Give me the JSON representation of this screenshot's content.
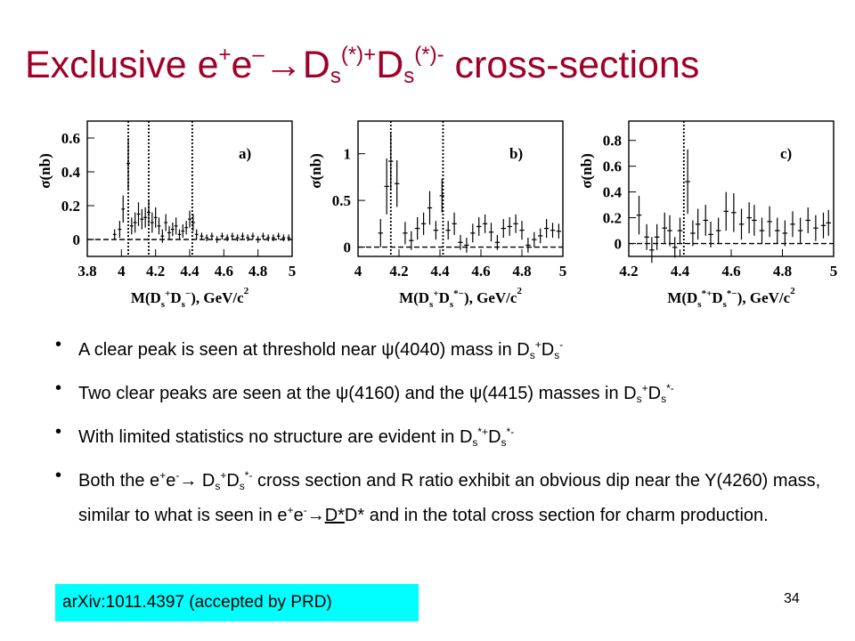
{
  "slide": {
    "title": {
      "t1": "Exclusive e",
      "t2": "+",
      "t3": "e",
      "t4": "–",
      "t5": "→D",
      "t6": "s",
      "t7": "(*)+",
      "t8": "D",
      "t9": "s",
      "t10": "(*)-",
      "t11": " cross-sections"
    },
    "bullets": [
      {
        "seg": [
          "A clear peak is seen at threshold near ψ(4040) mass in D",
          "s",
          "+",
          "D",
          "s",
          "-"
        ]
      },
      {
        "seg": [
          "Two clear peaks are seen at the ψ(4160) and the ψ(4415) masses in D",
          "s",
          "+",
          "D",
          "s",
          "*-"
        ]
      },
      {
        "seg": [
          "With limited statistics no structure are evident in  D",
          "s",
          "*+",
          "D",
          "s",
          "*-"
        ]
      },
      {
        "seg": [
          "Both the e",
          "+",
          "e",
          "-",
          "→ D",
          "s",
          "+",
          "D",
          "s",
          "*-",
          " cross section and R ratio exhibit an obvious dip near the Y(4260) mass, similar to what is seen in  e",
          "+",
          "e",
          "-",
          "→",
          "D*",
          "D* and in the total cross section for charm production."
        ]
      }
    ],
    "bullet_char": "•",
    "reference": "arXiv:1011.4397 (accepted by PRD)",
    "page_number": "34"
  },
  "chart_data": [
    {
      "type": "scatter",
      "panel_label": "a)",
      "ylabel": "σ(nb)",
      "xlabel": "M(Ds+Ds−), GeV/c²",
      "xlabel_parts": [
        "M(D",
        "s",
        "+",
        "D",
        "s",
        "−",
        "), GeV/c",
        "2"
      ],
      "xlim": [
        3.8,
        5.0
      ],
      "ylim": [
        -0.1,
        0.7
      ],
      "xticks": [
        "3.8",
        "4",
        "4.2",
        "4.4",
        "4.6",
        "4.8",
        "5"
      ],
      "yticks": [
        "0",
        "0.2",
        "0.4",
        "0.6"
      ],
      "vlines": [
        4.04,
        4.16,
        4.415
      ],
      "points": [
        [
          3.96,
          0.03
        ],
        [
          3.99,
          0.06
        ],
        [
          4.01,
          0.18
        ],
        [
          4.04,
          0.45
        ],
        [
          4.06,
          0.08
        ],
        [
          4.08,
          0.1
        ],
        [
          4.1,
          0.15
        ],
        [
          4.12,
          0.12
        ],
        [
          4.14,
          0.13
        ],
        [
          4.16,
          0.16
        ],
        [
          4.18,
          0.1
        ],
        [
          4.2,
          0.13
        ],
        [
          4.22,
          0.08
        ],
        [
          4.24,
          0.02
        ],
        [
          4.26,
          0.1
        ],
        [
          4.28,
          0.04
        ],
        [
          4.3,
          0.06
        ],
        [
          4.32,
          0.08
        ],
        [
          4.34,
          0.03
        ],
        [
          4.36,
          0.05
        ],
        [
          4.38,
          0.07
        ],
        [
          4.4,
          0.12
        ],
        [
          4.42,
          0.1
        ],
        [
          4.44,
          0.03
        ],
        [
          4.47,
          0.02
        ],
        [
          4.5,
          0.01
        ],
        [
          4.53,
          0.02
        ],
        [
          4.56,
          0.0
        ],
        [
          4.59,
          0.02
        ],
        [
          4.62,
          0.01
        ],
        [
          4.65,
          0.02
        ],
        [
          4.68,
          0.01
        ],
        [
          4.71,
          0.02
        ],
        [
          4.74,
          0.01
        ],
        [
          4.77,
          0.02
        ],
        [
          4.8,
          0.0
        ],
        [
          4.83,
          0.02
        ],
        [
          4.86,
          0.01
        ],
        [
          4.89,
          0.01
        ],
        [
          4.92,
          0.02
        ],
        [
          4.95,
          0.01
        ],
        [
          4.98,
          0.01
        ]
      ],
      "errors": [
        0.03,
        0.05,
        0.08,
        0.15,
        0.05,
        0.06,
        0.07,
        0.06,
        0.06,
        0.07,
        0.06,
        0.06,
        0.05,
        0.04,
        0.05,
        0.04,
        0.04,
        0.05,
        0.03,
        0.04,
        0.04,
        0.05,
        0.05,
        0.03,
        0.02,
        0.02,
        0.02,
        0.02,
        0.02,
        0.02,
        0.02,
        0.02,
        0.02,
        0.02,
        0.02,
        0.02,
        0.02,
        0.02,
        0.02,
        0.02,
        0.02,
        0.02
      ]
    },
    {
      "type": "scatter",
      "panel_label": "b)",
      "ylabel": "σ(nb)",
      "xlabel": "M(Ds+Ds*−), GeV/c²",
      "xlabel_parts": [
        "M(D",
        "s",
        "+",
        "D",
        "s",
        "*−",
        "), GeV/c",
        "2"
      ],
      "xlim": [
        4.0,
        5.0
      ],
      "ylim": [
        -0.1,
        1.35
      ],
      "xticks": [
        "4",
        "4.2",
        "4.4",
        "4.6",
        "4.8",
        "5"
      ],
      "yticks": [
        "0",
        "0.5",
        "1"
      ],
      "vlines": [
        4.16,
        4.415
      ],
      "points": [
        [
          4.11,
          0.15
        ],
        [
          4.14,
          0.65
        ],
        [
          4.16,
          0.92
        ],
        [
          4.19,
          0.68
        ],
        [
          4.23,
          0.15
        ],
        [
          4.26,
          0.07
        ],
        [
          4.29,
          0.2
        ],
        [
          4.32,
          0.25
        ],
        [
          4.35,
          0.42
        ],
        [
          4.38,
          0.18
        ],
        [
          4.41,
          0.55
        ],
        [
          4.44,
          0.18
        ],
        [
          4.47,
          0.25
        ],
        [
          4.5,
          0.05
        ],
        [
          4.53,
          0.02
        ],
        [
          4.56,
          0.15
        ],
        [
          4.59,
          0.22
        ],
        [
          4.62,
          0.25
        ],
        [
          4.65,
          0.16
        ],
        [
          4.68,
          0.05
        ],
        [
          4.71,
          0.2
        ],
        [
          4.74,
          0.22
        ],
        [
          4.77,
          0.25
        ],
        [
          4.8,
          0.18
        ],
        [
          4.83,
          0.02
        ],
        [
          4.86,
          0.08
        ],
        [
          4.89,
          0.12
        ],
        [
          4.92,
          0.2
        ],
        [
          4.95,
          0.18
        ],
        [
          4.98,
          0.17
        ]
      ],
      "errors": [
        0.15,
        0.3,
        0.3,
        0.25,
        0.12,
        0.1,
        0.12,
        0.12,
        0.18,
        0.1,
        0.18,
        0.1,
        0.12,
        0.08,
        0.08,
        0.1,
        0.1,
        0.1,
        0.1,
        0.08,
        0.1,
        0.1,
        0.1,
        0.1,
        0.08,
        0.08,
        0.08,
        0.1,
        0.08,
        0.08
      ]
    },
    {
      "type": "scatter",
      "panel_label": "c)",
      "ylabel": "σ(nb)",
      "xlabel": "M(Ds*+Ds*−), GeV/c²",
      "xlabel_parts": [
        "M(D",
        "s",
        "*+",
        "D",
        "s",
        "*−",
        "), GeV/c",
        "2"
      ],
      "xlim": [
        4.2,
        5.0
      ],
      "ylim": [
        -0.1,
        0.95
      ],
      "xticks": [
        "4.2",
        "4.4",
        "4.6",
        "4.8",
        "5"
      ],
      "yticks": [
        "0",
        "0.2",
        "0.4",
        "0.6",
        "0.8"
      ],
      "vlines": [
        4.415
      ],
      "points": [
        [
          4.24,
          0.22
        ],
        [
          4.27,
          0.05
        ],
        [
          4.29,
          -0.05
        ],
        [
          4.31,
          0.05
        ],
        [
          4.34,
          0.12
        ],
        [
          4.36,
          0.1
        ],
        [
          4.38,
          -0.03
        ],
        [
          4.4,
          0.1
        ],
        [
          4.43,
          0.48
        ],
        [
          4.45,
          0.08
        ],
        [
          4.47,
          0.15
        ],
        [
          4.5,
          0.18
        ],
        [
          4.52,
          0.07
        ],
        [
          4.55,
          0.1
        ],
        [
          4.58,
          0.25
        ],
        [
          4.61,
          0.24
        ],
        [
          4.64,
          0.15
        ],
        [
          4.67,
          0.2
        ],
        [
          4.69,
          0.18
        ],
        [
          4.72,
          0.1
        ],
        [
          4.75,
          0.17
        ],
        [
          4.78,
          0.1
        ],
        [
          4.81,
          0.08
        ],
        [
          4.84,
          0.15
        ],
        [
          4.87,
          0.1
        ],
        [
          4.9,
          0.18
        ],
        [
          4.93,
          0.12
        ],
        [
          4.96,
          0.14
        ],
        [
          4.98,
          0.16
        ]
      ],
      "errors": [
        0.15,
        0.1,
        0.1,
        0.1,
        0.12,
        0.12,
        0.08,
        0.1,
        0.25,
        0.1,
        0.12,
        0.12,
        0.1,
        0.1,
        0.15,
        0.15,
        0.12,
        0.12,
        0.12,
        0.1,
        0.12,
        0.1,
        0.1,
        0.1,
        0.1,
        0.1,
        0.1,
        0.1,
        0.1
      ]
    }
  ]
}
